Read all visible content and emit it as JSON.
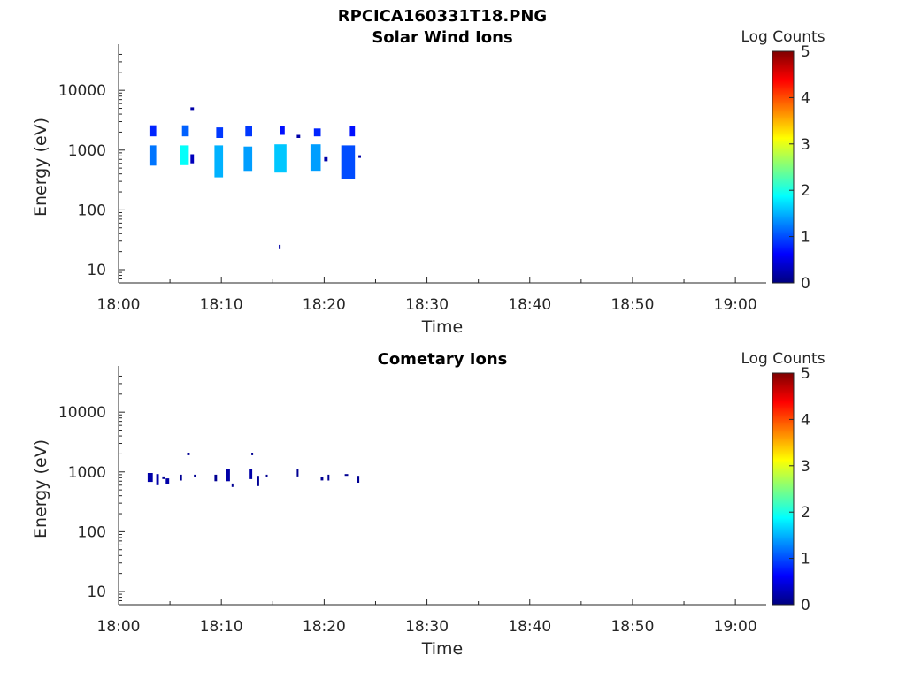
{
  "figure_title": "RPCICA160331T18.PNG",
  "colorscale": [
    "#00007f",
    "#0000ff",
    "#007fff",
    "#00ffff",
    "#7fff7f",
    "#ffff00",
    "#ff7f00",
    "#ff0000",
    "#7f0000"
  ],
  "chart_data": [
    {
      "type": "heatmap",
      "title": "Solar Wind Ions",
      "xlabel": "Time",
      "ylabel": "Energy (eV)",
      "y_scale": "log",
      "xlim": [
        "18:00",
        "19:03"
      ],
      "ylim": [
        6,
        45000
      ],
      "x_ticks": [
        "18:00",
        "18:10",
        "18:20",
        "18:30",
        "18:40",
        "18:50",
        "19:00"
      ],
      "y_ticks": [
        "10",
        "100",
        "1000",
        "10000"
      ],
      "colorbar_label": "Log Counts",
      "colorbar_ticks": [
        "0",
        "1",
        "2",
        "3",
        "4",
        "5"
      ],
      "clim": [
        0,
        5
      ],
      "legend_position": "right",
      "cells": [
        {
          "t_start": "18:03:00",
          "t_end": "18:03:40",
          "e_min": 1700,
          "e_max": 2600,
          "log_counts": 0.8
        },
        {
          "t_start": "18:03:00",
          "t_end": "18:03:40",
          "e_min": 550,
          "e_max": 1200,
          "log_counts": 1.2
        },
        {
          "t_start": "18:06:10",
          "t_end": "18:06:50",
          "e_min": 1700,
          "e_max": 2600,
          "log_counts": 1.1
        },
        {
          "t_start": "18:06:00",
          "t_end": "18:06:50",
          "e_min": 560,
          "e_max": 1200,
          "log_counts": 1.9
        },
        {
          "t_start": "18:07:00",
          "t_end": "18:07:20",
          "e_min": 600,
          "e_max": 850,
          "log_counts": 0.3
        },
        {
          "t_start": "18:07:00",
          "t_end": "18:07:20",
          "e_min": 4700,
          "e_max": 5200,
          "log_counts": 0.2
        },
        {
          "t_start": "18:09:30",
          "t_end": "18:10:10",
          "e_min": 1600,
          "e_max": 2400,
          "log_counts": 0.9
        },
        {
          "t_start": "18:09:20",
          "t_end": "18:10:10",
          "e_min": 350,
          "e_max": 1200,
          "log_counts": 1.5
        },
        {
          "t_start": "18:12:20",
          "t_end": "18:13:00",
          "e_min": 1700,
          "e_max": 2500,
          "log_counts": 0.9
        },
        {
          "t_start": "18:12:10",
          "t_end": "18:13:00",
          "e_min": 450,
          "e_max": 1150,
          "log_counts": 1.4
        },
        {
          "t_start": "18:15:40",
          "t_end": "18:16:10",
          "e_min": 1800,
          "e_max": 2500,
          "log_counts": 0.7
        },
        {
          "t_start": "18:15:10",
          "t_end": "18:16:20",
          "e_min": 420,
          "e_max": 1250,
          "log_counts": 1.6
        },
        {
          "t_start": "18:15:35",
          "t_end": "18:15:45",
          "e_min": 22,
          "e_max": 26,
          "log_counts": 0.2
        },
        {
          "t_start": "18:17:20",
          "t_end": "18:17:40",
          "e_min": 1600,
          "e_max": 1800,
          "log_counts": 0.2
        },
        {
          "t_start": "18:19:00",
          "t_end": "18:19:40",
          "e_min": 1700,
          "e_max": 2300,
          "log_counts": 0.8
        },
        {
          "t_start": "18:18:40",
          "t_end": "18:19:40",
          "e_min": 450,
          "e_max": 1250,
          "log_counts": 1.4
        },
        {
          "t_start": "18:20:00",
          "t_end": "18:20:20",
          "e_min": 650,
          "e_max": 760,
          "log_counts": 0.2
        },
        {
          "t_start": "18:22:30",
          "t_end": "18:23:00",
          "e_min": 1700,
          "e_max": 2500,
          "log_counts": 0.7
        },
        {
          "t_start": "18:21:40",
          "t_end": "18:23:00",
          "e_min": 330,
          "e_max": 1200,
          "log_counts": 1.0
        },
        {
          "t_start": "18:23:20",
          "t_end": "18:23:35",
          "e_min": 740,
          "e_max": 820,
          "log_counts": 0.2
        }
      ]
    },
    {
      "type": "heatmap",
      "title": "Cometary Ions",
      "xlabel": "Time",
      "ylabel": "Energy (eV)",
      "y_scale": "log",
      "xlim": [
        "18:00",
        "19:03"
      ],
      "ylim": [
        6,
        45000
      ],
      "x_ticks": [
        "18:00",
        "18:10",
        "18:20",
        "18:30",
        "18:40",
        "18:50",
        "19:00"
      ],
      "y_ticks": [
        "10",
        "100",
        "1000",
        "10000"
      ],
      "colorbar_label": "Log Counts",
      "colorbar_ticks": [
        "0",
        "1",
        "2",
        "3",
        "4",
        "5"
      ],
      "clim": [
        0,
        5
      ],
      "legend_position": "right",
      "cells": [
        {
          "t_start": "18:02:50",
          "t_end": "18:03:20",
          "e_min": 680,
          "e_max": 960,
          "log_counts": 0.2
        },
        {
          "t_start": "18:03:40",
          "t_end": "18:03:55",
          "e_min": 600,
          "e_max": 920,
          "log_counts": 0.2
        },
        {
          "t_start": "18:04:15",
          "t_end": "18:04:30",
          "e_min": 760,
          "e_max": 840,
          "log_counts": 0.1
        },
        {
          "t_start": "18:04:35",
          "t_end": "18:04:55",
          "e_min": 620,
          "e_max": 780,
          "log_counts": 0.2
        },
        {
          "t_start": "18:06:00",
          "t_end": "18:06:10",
          "e_min": 720,
          "e_max": 900,
          "log_counts": 0.1
        },
        {
          "t_start": "18:06:40",
          "t_end": "18:06:55",
          "e_min": 1900,
          "e_max": 2100,
          "log_counts": 0.1
        },
        {
          "t_start": "18:07:20",
          "t_end": "18:07:30",
          "e_min": 820,
          "e_max": 900,
          "log_counts": 0.1
        },
        {
          "t_start": "18:09:20",
          "t_end": "18:09:35",
          "e_min": 700,
          "e_max": 900,
          "log_counts": 0.1
        },
        {
          "t_start": "18:10:30",
          "t_end": "18:10:50",
          "e_min": 700,
          "e_max": 1100,
          "log_counts": 0.2
        },
        {
          "t_start": "18:11:00",
          "t_end": "18:11:10",
          "e_min": 560,
          "e_max": 640,
          "log_counts": 0.1
        },
        {
          "t_start": "18:12:40",
          "t_end": "18:13:00",
          "e_min": 760,
          "e_max": 1100,
          "log_counts": 0.2
        },
        {
          "t_start": "18:12:55",
          "t_end": "18:13:05",
          "e_min": 1900,
          "e_max": 2100,
          "log_counts": 0.1
        },
        {
          "t_start": "18:13:30",
          "t_end": "18:13:40",
          "e_min": 580,
          "e_max": 860,
          "log_counts": 0.1
        },
        {
          "t_start": "18:14:20",
          "t_end": "18:14:30",
          "e_min": 820,
          "e_max": 900,
          "log_counts": 0.1
        },
        {
          "t_start": "18:17:20",
          "t_end": "18:17:30",
          "e_min": 840,
          "e_max": 1100,
          "log_counts": 0.1
        },
        {
          "t_start": "18:19:40",
          "t_end": "18:19:55",
          "e_min": 720,
          "e_max": 820,
          "log_counts": 0.1
        },
        {
          "t_start": "18:20:20",
          "t_end": "18:20:30",
          "e_min": 720,
          "e_max": 900,
          "log_counts": 0.1
        },
        {
          "t_start": "18:22:00",
          "t_end": "18:22:20",
          "e_min": 860,
          "e_max": 920,
          "log_counts": 0.1
        },
        {
          "t_start": "18:23:10",
          "t_end": "18:23:25",
          "e_min": 660,
          "e_max": 860,
          "log_counts": 0.1
        }
      ]
    }
  ]
}
